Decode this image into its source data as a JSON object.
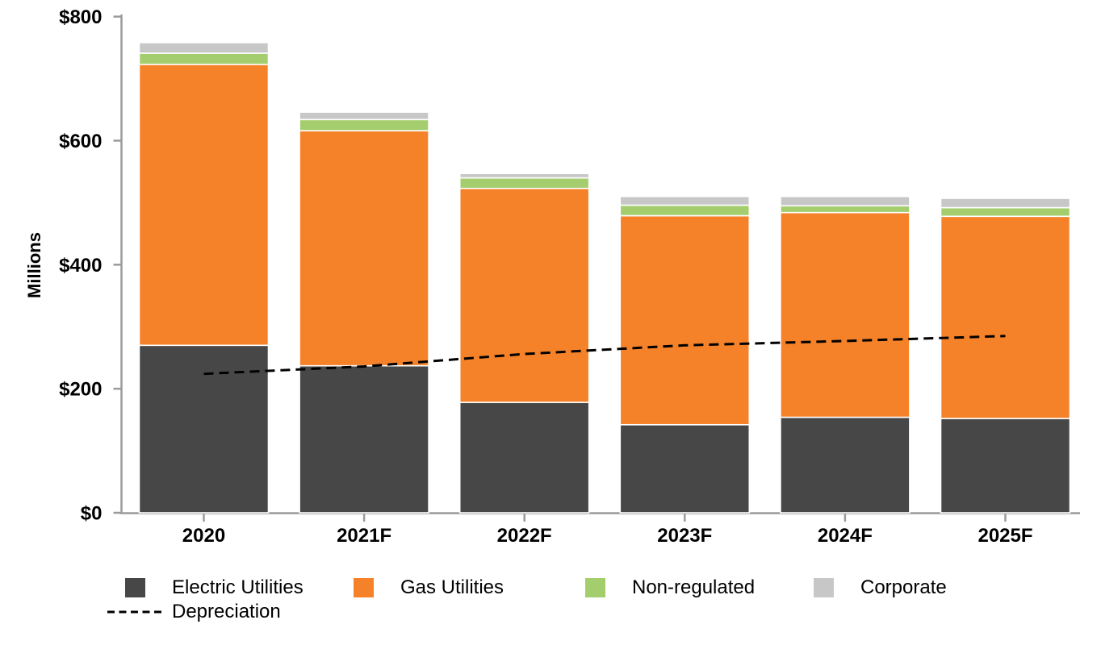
{
  "chart_data": {
    "type": "bar",
    "stacked": true,
    "title": "",
    "xlabel": "",
    "ylabel": "Millions",
    "categories": [
      "2020",
      "2021F",
      "2022F",
      "2023F",
      "2024F",
      "2025F"
    ],
    "series": [
      {
        "name": "Electric Utilities",
        "color": "#474747",
        "values": [
          270,
          237,
          178,
          142,
          154,
          152
        ]
      },
      {
        "name": "Gas Utilities",
        "color": "#F58229",
        "values": [
          453,
          379,
          345,
          337,
          330,
          326
        ]
      },
      {
        "name": "Non-regulated",
        "color": "#A4CE6E",
        "values": [
          18,
          18,
          17,
          17,
          11,
          14
        ]
      },
      {
        "name": "Corporate",
        "color": "#C7C7C7",
        "values": [
          17,
          12,
          7,
          14,
          15,
          15
        ]
      }
    ],
    "line_series": {
      "name": "Depreciation",
      "color": "#000000",
      "dashed": true,
      "values": [
        224,
        236,
        256,
        270,
        277,
        285
      ]
    },
    "totals": [
      758,
      646,
      547,
      510,
      510,
      507
    ],
    "y_axis": {
      "labels": [
        "$0",
        "$200",
        "$400",
        "$600",
        "$800"
      ],
      "tick_values": [
        0,
        200,
        400,
        600,
        800
      ],
      "min": 0,
      "max": 800
    },
    "axis_color": "#9B9B9B",
    "separator_color": "#FFFFFF",
    "grid": false,
    "legend_position": "bottom"
  }
}
